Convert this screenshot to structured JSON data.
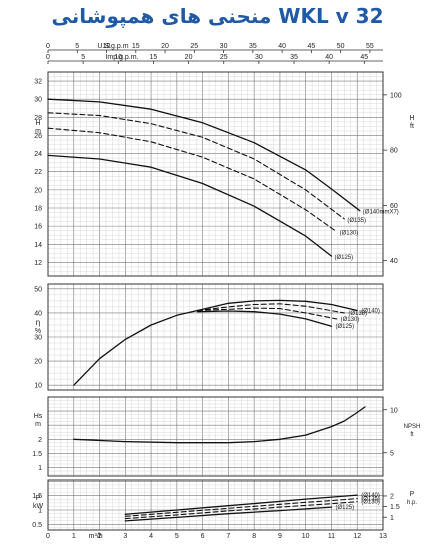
{
  "title": "منحنی های همپوشانی WKL v 32",
  "axes": {
    "top_usgpm_label": "U.S.g.p.m",
    "top_usgpm_ticks": [
      "0",
      "5",
      "10",
      "15",
      "20",
      "25",
      "30",
      "35",
      "40",
      "45",
      "50",
      "55"
    ],
    "top_impgpm_label": "Imp.g.p.m.",
    "top_impgpm_ticks": [
      "0",
      "5",
      "10",
      "15",
      "20",
      "25",
      "30",
      "35",
      "40",
      "45"
    ],
    "bottom_label": "m³/h",
    "bottom_ticks": [
      "0",
      "1",
      "2",
      "3",
      "4",
      "5",
      "6",
      "7",
      "8",
      "9",
      "10",
      "11",
      "12",
      "13"
    ],
    "head_left_unit": "H m",
    "head_left_ticks": [
      "32",
      "30",
      "28",
      "26",
      "24",
      "22",
      "20",
      "18",
      "16",
      "14",
      "12"
    ],
    "head_right_unit": "H ft",
    "head_right_ticks": [
      "100",
      "80",
      "60",
      "40"
    ],
    "eff_left_unit": "η %",
    "eff_left_ticks": [
      "50",
      "40",
      "30",
      "20",
      "10"
    ],
    "npsh_left_unit": "Hs m",
    "npsh_left_ticks": [
      "2",
      "1.5",
      "1"
    ],
    "npsh_right_unit": "NPSH ft",
    "npsh_right_ticks": [
      "10",
      "5"
    ],
    "power_left_unit": "P kW",
    "power_left_ticks": [
      "1.5",
      "1",
      "0.5"
    ],
    "power_right_unit": "P h.p.",
    "power_right_ticks": [
      "2",
      "1.5",
      "1"
    ]
  },
  "chart_data": [
    {
      "type": "line",
      "panel": "head",
      "xlabel": "m³/h",
      "ylabel": "H m",
      "xlim": [
        0,
        13
      ],
      "ylim": [
        10.5,
        33
      ],
      "series": [
        {
          "name": "Ø140mmX7",
          "style": "solid",
          "x": [
            0,
            2,
            4,
            6,
            8,
            10,
            11,
            12.1
          ],
          "y": [
            30,
            29.7,
            28.9,
            27.4,
            25.2,
            22.2,
            20.1,
            17.7
          ]
        },
        {
          "name": "Ø135",
          "style": "dashed",
          "x": [
            0,
            2,
            4,
            6,
            8,
            10,
            11.5
          ],
          "y": [
            28.5,
            28.2,
            27.3,
            25.8,
            23.4,
            20,
            16.8
          ]
        },
        {
          "name": "Ø130",
          "style": "dashed",
          "x": [
            0,
            2,
            4,
            6,
            8,
            10,
            11.2
          ],
          "y": [
            26.8,
            26.3,
            25.3,
            23.6,
            21.2,
            17.8,
            15.4
          ]
        },
        {
          "name": "Ø125",
          "style": "solid",
          "x": [
            0,
            2,
            4,
            6,
            8,
            10,
            11
          ],
          "y": [
            23.8,
            23.4,
            22.5,
            20.7,
            18.2,
            14.9,
            12.7
          ]
        }
      ]
    },
    {
      "type": "line",
      "panel": "efficiency",
      "xlabel": "m³/h",
      "ylabel": "η %",
      "xlim": [
        0,
        13
      ],
      "ylim": [
        8,
        52
      ],
      "series": [
        {
          "name": "",
          "style": "solid",
          "x": [
            1,
            2,
            3,
            4,
            5,
            5.8
          ],
          "y": [
            10,
            21,
            29,
            35,
            39,
            41
          ]
        },
        {
          "name": "Ø140",
          "style": "solid",
          "x": [
            5.8,
            7,
            8,
            9,
            10,
            11,
            12
          ],
          "y": [
            41,
            44,
            45,
            45.2,
            44.8,
            43.5,
            41
          ]
        },
        {
          "name": "Ø135",
          "style": "dashed",
          "x": [
            5.8,
            7,
            8,
            9,
            10,
            11.5
          ],
          "y": [
            41,
            42.5,
            43.5,
            43.8,
            42.8,
            40
          ]
        },
        {
          "name": "Ø130",
          "style": "dashed",
          "x": [
            5.8,
            7,
            8,
            9,
            10,
            11.2
          ],
          "y": [
            41,
            41.5,
            42,
            41.8,
            40,
            37.5
          ]
        },
        {
          "name": "Ø125",
          "style": "solid",
          "x": [
            5.8,
            7,
            8,
            9,
            10,
            11
          ],
          "y": [
            40.5,
            40.8,
            40.5,
            39.5,
            37.5,
            34.5
          ]
        }
      ]
    },
    {
      "type": "line",
      "panel": "npsh",
      "xlabel": "m³/h",
      "ylabel": "Hs m",
      "xlim": [
        0,
        13
      ],
      "ylim": [
        0.7,
        3.5
      ],
      "series": [
        {
          "name": "",
          "style": "solid",
          "x": [
            1,
            3,
            5,
            7,
            8,
            9,
            10,
            10.5,
            11,
            11.5,
            12,
            12.3
          ],
          "y": [
            2,
            1.92,
            1.88,
            1.88,
            1.92,
            2.0,
            2.15,
            2.3,
            2.45,
            2.65,
            2.95,
            3.15
          ]
        }
      ]
    },
    {
      "type": "line",
      "panel": "power",
      "xlabel": "m³/h",
      "ylabel": "P kW",
      "xlim": [
        0,
        13
      ],
      "ylim": [
        0.3,
        2.05
      ],
      "series": [
        {
          "name": "Ø140",
          "style": "solid",
          "x": [
            3,
            5,
            7,
            9,
            10,
            11,
            12
          ],
          "y": [
            0.85,
            1.0,
            1.15,
            1.3,
            1.38,
            1.45,
            1.52
          ]
        },
        {
          "name": "Ø135",
          "style": "dashed",
          "x": [
            3,
            5,
            7,
            9,
            10,
            11,
            12
          ],
          "y": [
            0.78,
            0.92,
            1.06,
            1.2,
            1.27,
            1.33,
            1.4
          ]
        },
        {
          "name": "Ø130",
          "style": "dashed",
          "x": [
            3,
            5,
            7,
            9,
            10,
            11,
            12
          ],
          "y": [
            0.7,
            0.83,
            0.97,
            1.1,
            1.16,
            1.22,
            1.29
          ]
        },
        {
          "name": "Ø125",
          "style": "solid",
          "x": [
            3,
            5,
            7,
            9,
            10,
            11
          ],
          "y": [
            0.62,
            0.74,
            0.87,
            0.98,
            1.04,
            1.1
          ]
        }
      ]
    }
  ]
}
